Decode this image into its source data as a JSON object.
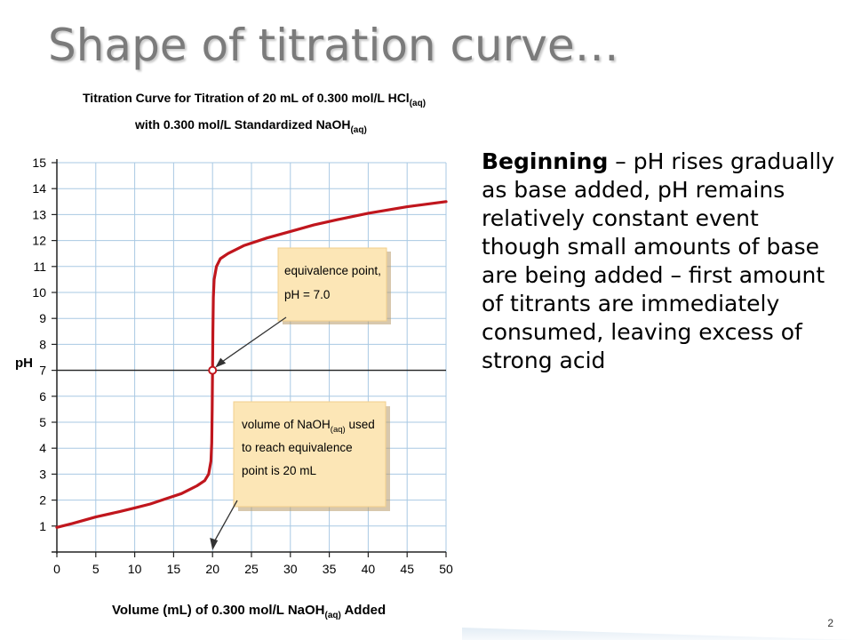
{
  "slide": {
    "title": "Shape of titration curve…",
    "body_bold": "Beginning",
    "body_text": " – pH rises gradually as base added, pH remains relatively constant event though small amounts of base are being added – first amount of titrants are immediately consumed, leaving excess of strong acid",
    "page_number": "2"
  },
  "chart_data": {
    "type": "line",
    "title_line1": "Titration Curve for Titration of 20 mL of 0.300 mol/L HCl",
    "title_line1_sub": "(aq)",
    "title_line2": "with 0.300 mol/L Standardized NaOH",
    "title_line2_sub": "(aq)",
    "xlabel": "Volume (mL) of 0.300 mol/L NaOH",
    "xlabel_sub": "(aq)",
    "xlabel_suffix": " Added",
    "ylabel": "pH",
    "xlim": [
      0,
      50
    ],
    "ylim": [
      0,
      15
    ],
    "x_ticks": [
      0,
      5,
      10,
      15,
      20,
      25,
      30,
      35,
      40,
      45,
      50
    ],
    "y_ticks": [
      1,
      2,
      3,
      4,
      5,
      6,
      7,
      8,
      9,
      10,
      11,
      12,
      13,
      14,
      15
    ],
    "grid": true,
    "reference_line_y": 7,
    "series": [
      {
        "color": "#c0161d",
        "x": [
          0,
          2,
          5,
          8,
          10,
          12,
          14,
          16,
          17,
          18,
          19,
          19.5,
          19.8,
          19.9,
          19.95,
          20,
          20.05,
          20.1,
          20.2,
          20.5,
          21,
          22,
          24,
          27,
          30,
          33,
          36,
          40,
          45,
          50
        ],
        "y": [
          0.95,
          1.1,
          1.35,
          1.55,
          1.7,
          1.85,
          2.05,
          2.25,
          2.4,
          2.55,
          2.75,
          3.0,
          3.5,
          4.2,
          5.5,
          7.0,
          8.5,
          9.8,
          10.5,
          11.0,
          11.3,
          11.5,
          11.8,
          12.1,
          12.35,
          12.6,
          12.8,
          13.05,
          13.3,
          13.5
        ]
      }
    ],
    "equivalence_point": {
      "x": 20,
      "y": 7
    },
    "callouts": [
      {
        "lines": [
          "equivalence point,",
          "pH = 7.0"
        ]
      },
      {
        "line1_main": "volume of NaOH",
        "line1_sub": "(aq)",
        "line1_end": " used",
        "line2": "to reach equivalence",
        "line3": "point is 20 mL"
      }
    ],
    "colors": {
      "curve": "#c0161d",
      "grid": "#a9c9e3",
      "callout_bg": "#fce6b6",
      "callout_border": "#f2cf8c"
    }
  }
}
